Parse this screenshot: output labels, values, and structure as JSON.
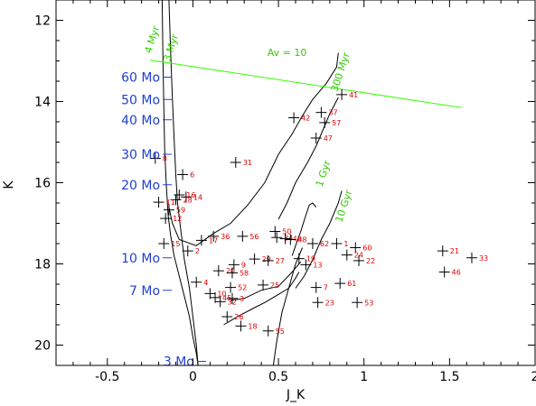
{
  "chart_data": {
    "type": "scatter",
    "title": "",
    "xlabel": "J_K",
    "ylabel": "K",
    "xlim": [
      -0.8,
      2.0
    ],
    "ylim": [
      11.5,
      20.5
    ],
    "y_inverted": true,
    "x_ticks": [
      "-0.5",
      "0",
      "0.5",
      "1",
      "1.5",
      "2"
    ],
    "x_tick_values": [
      -0.5,
      0,
      0.5,
      1,
      1.5,
      2
    ],
    "y_ticks": [
      "12",
      "14",
      "16",
      "18",
      "20"
    ],
    "y_tick_values": [
      12,
      14,
      16,
      18,
      20
    ],
    "grid": false,
    "colors": {
      "points": "#000000",
      "point_labels": "#e00000",
      "mass_labels": "#2040d0",
      "isochrone_labels": "#33cc00",
      "reddening_vector": "#33ff00",
      "isochrones": "#000000"
    },
    "points": [
      {
        "label": "41",
        "x": 0.87,
        "y": 13.83
      },
      {
        "label": "37",
        "x": 0.75,
        "y": 14.27
      },
      {
        "label": "42",
        "x": 0.59,
        "y": 14.4
      },
      {
        "label": "57",
        "x": 0.77,
        "y": 14.52
      },
      {
        "label": "47",
        "x": 0.72,
        "y": 14.9
      },
      {
        "label": "8",
        "x": -0.22,
        "y": 15.4
      },
      {
        "label": "31",
        "x": 0.25,
        "y": 15.5
      },
      {
        "label": "6",
        "x": -0.06,
        "y": 15.8
      },
      {
        "label": "16",
        "x": -0.08,
        "y": 16.3
      },
      {
        "label": "14",
        "x": -0.04,
        "y": 16.35
      },
      {
        "label": "28",
        "x": -0.1,
        "y": 16.42
      },
      {
        "label": "11",
        "x": -0.2,
        "y": 16.48
      },
      {
        "label": "59",
        "x": -0.14,
        "y": 16.67
      },
      {
        "label": "12",
        "x": -0.16,
        "y": 16.88
      },
      {
        "label": "15",
        "x": -0.17,
        "y": 17.5
      },
      {
        "label": "2",
        "x": -0.03,
        "y": 17.68
      },
      {
        "label": "36",
        "x": 0.12,
        "y": 17.32
      },
      {
        "label": "17",
        "x": 0.05,
        "y": 17.42
      },
      {
        "label": "56",
        "x": 0.29,
        "y": 17.32
      },
      {
        "label": "50",
        "x": 0.48,
        "y": 17.2
      },
      {
        "label": "34",
        "x": 0.49,
        "y": 17.35
      },
      {
        "label": "49",
        "x": 0.54,
        "y": 17.38
      },
      {
        "label": "48",
        "x": 0.57,
        "y": 17.4
      },
      {
        "label": "62",
        "x": 0.7,
        "y": 17.5
      },
      {
        "label": "1",
        "x": 0.84,
        "y": 17.5
      },
      {
        "label": "60",
        "x": 0.95,
        "y": 17.6
      },
      {
        "label": "24",
        "x": 0.9,
        "y": 17.78
      },
      {
        "label": "22",
        "x": 0.97,
        "y": 17.92
      },
      {
        "label": "19",
        "x": 0.62,
        "y": 17.87
      },
      {
        "label": "13",
        "x": 0.66,
        "y": 18.02
      },
      {
        "label": "29",
        "x": 0.36,
        "y": 17.88
      },
      {
        "label": "27",
        "x": 0.44,
        "y": 17.92
      },
      {
        "label": "9",
        "x": 0.24,
        "y": 18.02
      },
      {
        "label": "20",
        "x": 0.15,
        "y": 18.17
      },
      {
        "label": "58",
        "x": 0.23,
        "y": 18.22
      },
      {
        "label": "21",
        "x": 1.46,
        "y": 17.68
      },
      {
        "label": "33",
        "x": 1.63,
        "y": 17.85
      },
      {
        "label": "46",
        "x": 1.47,
        "y": 18.2
      },
      {
        "label": "4",
        "x": 0.02,
        "y": 18.45
      },
      {
        "label": "52",
        "x": 0.22,
        "y": 18.58
      },
      {
        "label": "25",
        "x": 0.41,
        "y": 18.52
      },
      {
        "label": "7",
        "x": 0.72,
        "y": 18.58
      },
      {
        "label": "61",
        "x": 0.86,
        "y": 18.48
      },
      {
        "label": "10",
        "x": 0.1,
        "y": 18.73
      },
      {
        "label": "45",
        "x": 0.13,
        "y": 18.83
      },
      {
        "label": "32",
        "x": 0.16,
        "y": 18.93
      },
      {
        "label": "3",
        "x": 0.23,
        "y": 18.85
      },
      {
        "label": "23",
        "x": 0.73,
        "y": 18.95
      },
      {
        "label": "53",
        "x": 0.96,
        "y": 18.95
      },
      {
        "label": "26",
        "x": 0.2,
        "y": 19.3
      },
      {
        "label": "18",
        "x": 0.28,
        "y": 19.53
      },
      {
        "label": "55",
        "x": 0.44,
        "y": 19.65
      }
    ],
    "mass_labels": [
      {
        "label": "60 Mo",
        "x": -0.15,
        "y": 13.4
      },
      {
        "label": "50 Mo",
        "x": -0.15,
        "y": 13.95
      },
      {
        "label": "40 Mo",
        "x": -0.15,
        "y": 14.45
      },
      {
        "label": "30 Mo",
        "x": -0.15,
        "y": 15.3
      },
      {
        "label": "20 Mo",
        "x": -0.15,
        "y": 16.05
      },
      {
        "label": "10 Mo",
        "x": -0.15,
        "y": 17.85
      },
      {
        "label": "7 Mo",
        "x": -0.15,
        "y": 18.65
      },
      {
        "label": "3 Mo",
        "x": 0.05,
        "y": 20.4
      }
    ],
    "isochrone_labels": [
      {
        "label": "4 Myr",
        "x": -0.22,
        "y": 12.5
      },
      {
        "label": "3 Myr",
        "x": -0.11,
        "y": 12.7
      },
      {
        "label": "300 Myr",
        "x": 0.88,
        "y": 13.3
      },
      {
        "label": "Av = 10",
        "x": 0.55,
        "y": 12.88
      },
      {
        "label": "1 Gyr",
        "x": 0.78,
        "y": 15.8
      },
      {
        "label": "10 Gyr",
        "x": 0.9,
        "y": 16.6
      }
    ],
    "reddening_vector": {
      "x": [
        -0.25,
        1.57
      ],
      "y": [
        12.98,
        14.15
      ]
    },
    "isochrones": [
      {
        "x": [
          -0.18,
          -0.175,
          -0.17,
          -0.165,
          -0.155,
          -0.145,
          -0.13,
          -0.11,
          -0.08,
          -0.05,
          -0.02,
          0.0,
          0.02,
          0.03
        ],
        "y": [
          11.5,
          13.0,
          14.2,
          15.2,
          16.1,
          16.8,
          17.3,
          17.8,
          18.3,
          18.8,
          19.3,
          19.8,
          20.2,
          20.5
        ]
      },
      {
        "x": [
          -0.14,
          -0.13,
          -0.12,
          -0.11,
          -0.1,
          -0.09,
          -0.07,
          -0.05,
          -0.02,
          0.0,
          0.02,
          0.03
        ],
        "y": [
          11.5,
          12.8,
          13.9,
          14.9,
          15.8,
          16.5,
          17.2,
          17.9,
          18.6,
          19.3,
          20.0,
          20.5
        ]
      },
      {
        "x": [
          -0.14,
          -0.12,
          -0.1,
          -0.08,
          0.02,
          0.12,
          0.22,
          0.32,
          0.42,
          0.5,
          0.58,
          0.64,
          0.7,
          0.78,
          0.84,
          0.85
        ],
        "y": [
          16.6,
          17.0,
          17.2,
          17.4,
          17.55,
          17.25,
          17.0,
          16.55,
          16.0,
          15.3,
          14.8,
          14.35,
          13.95,
          13.55,
          13.15,
          12.8
        ]
      },
      {
        "x": [
          0.58,
          0.6,
          0.63,
          0.66,
          0.68,
          0.7,
          0.72
        ],
        "y": [
          17.8,
          17.55,
          17.2,
          16.8,
          16.55,
          16.5,
          16.6
        ]
      },
      {
        "x": [
          0.22,
          0.3,
          0.4,
          0.5,
          0.58,
          0.63
        ],
        "y": [
          18.9,
          18.85,
          18.65,
          18.55,
          18.2,
          17.95
        ]
      },
      {
        "x": [
          0.18,
          0.26,
          0.35,
          0.42,
          0.5,
          0.56,
          0.6,
          0.62
        ],
        "y": [
          19.5,
          19.3,
          19.1,
          18.95,
          18.75,
          18.6,
          18.35,
          18.2
        ]
      },
      {
        "x": [
          0.5,
          0.55,
          0.6,
          0.67,
          0.72,
          0.76,
          0.8,
          0.85
        ],
        "y": [
          16.9,
          16.5,
          16.0,
          15.5,
          15.1,
          14.7,
          14.3,
          13.9
        ]
      },
      {
        "x": [
          0.6,
          0.65,
          0.7,
          0.75,
          0.8,
          0.85,
          0.87
        ],
        "y": [
          18.6,
          18.3,
          17.9,
          17.4,
          17.0,
          16.5,
          16.2
        ]
      },
      {
        "x": [
          0.47,
          0.49,
          0.52,
          0.56,
          0.6,
          0.64
        ],
        "y": [
          20.5,
          19.9,
          19.2,
          18.6,
          18.0,
          17.6
        ]
      }
    ]
  }
}
